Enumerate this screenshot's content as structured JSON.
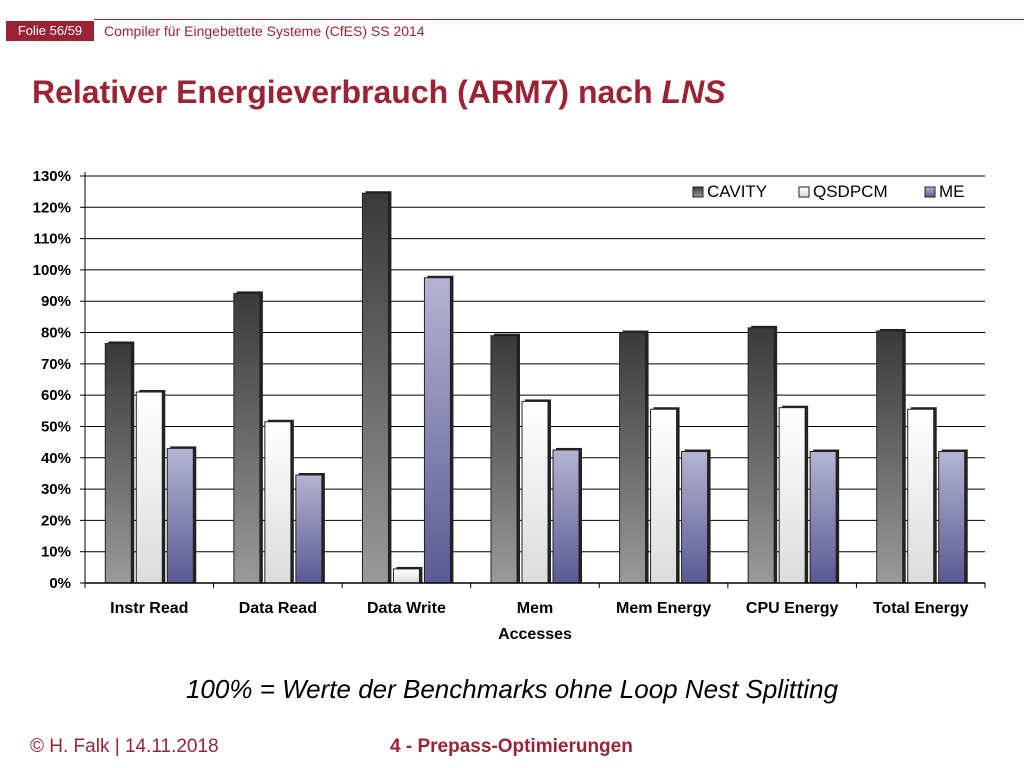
{
  "header": {
    "folie": "Folie 56/59",
    "course": "Compiler für Eingebettete Systeme (CfES) SS 2014"
  },
  "title": {
    "main": "Relativer Energieverbrauch (ARM7) nach ",
    "emph": "LNS"
  },
  "note": "100% = Werte der Benchmarks ohne Loop Nest Splitting",
  "footer": {
    "left": "© H. Falk | 14.11.2018",
    "center": "4 - Prepass-Optimierungen"
  },
  "colors": {
    "accent": "#9b2335",
    "cavity": "#555555",
    "qsdpcm": "#eeeeee",
    "me": "#8a8ab4"
  },
  "chart_data": {
    "type": "bar",
    "categories": [
      [
        "Instr Read"
      ],
      [
        "Data Read"
      ],
      [
        "Data Write"
      ],
      [
        "Mem",
        "Accesses"
      ],
      [
        "Mem Energy"
      ],
      [
        "CPU Energy"
      ],
      [
        "Total Energy"
      ]
    ],
    "series": [
      {
        "name": "CAVITY",
        "values": [
          76.5,
          92.5,
          124.5,
          79,
          80,
          81.5,
          80.5
        ]
      },
      {
        "name": "QSDPCM",
        "values": [
          61,
          51.5,
          4.5,
          58,
          55.5,
          56,
          55.5
        ]
      },
      {
        "name": "ME",
        "values": [
          43,
          34.5,
          97.5,
          42.5,
          42,
          42,
          42
        ]
      }
    ],
    "ylim": [
      0,
      130
    ],
    "ytick_step": 10,
    "ytick_suffix": "%",
    "grid": true,
    "legend_position": "top-right"
  }
}
